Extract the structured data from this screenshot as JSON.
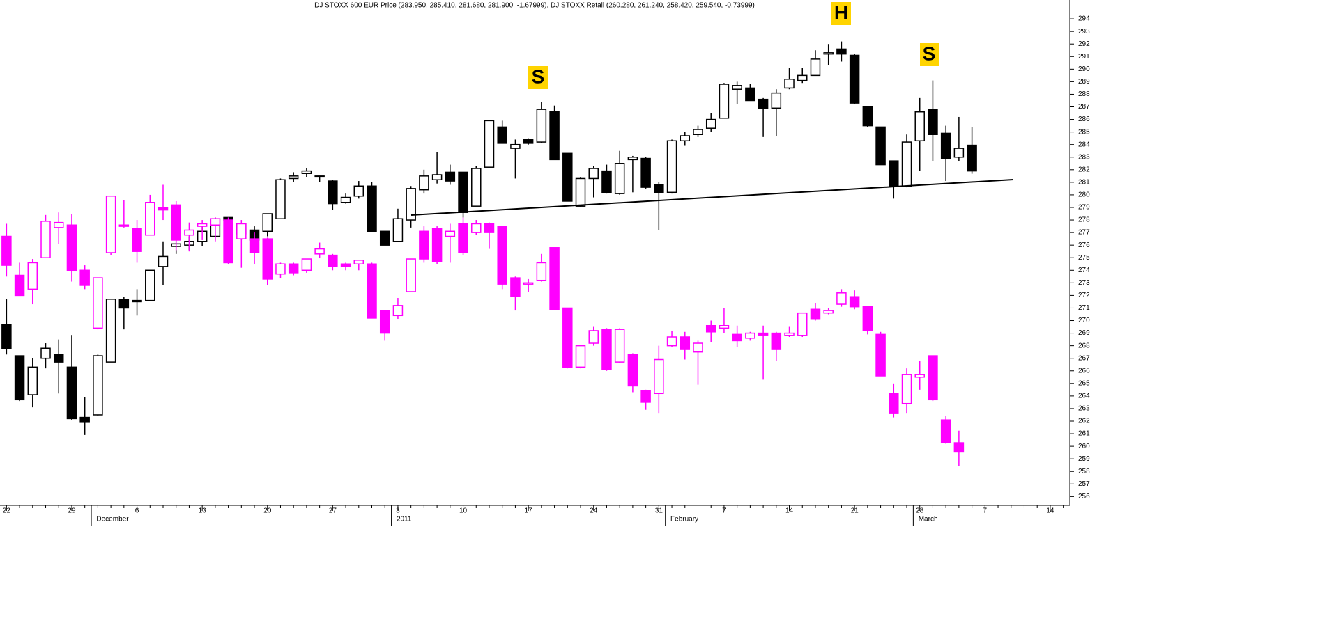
{
  "chart_data": {
    "type": "candlestick",
    "title": "DJ STOXX 600 EUR Price (283.950, 285.410, 281.680, 281.900, -1.67999), DJ STOXX Retail (260.280, 261.240, 258.420, 259.540, -0.73999)",
    "categories": [
      "22",
      null,
      null,
      null,
      null,
      "29",
      null,
      null,
      null,
      null,
      "6",
      null,
      null,
      null,
      null,
      "13",
      null,
      null,
      null,
      null,
      "20",
      null,
      null,
      null,
      null,
      "27",
      null,
      null,
      null,
      null,
      "3",
      null,
      null,
      null,
      null,
      "10",
      null,
      null,
      null,
      null,
      "17",
      null,
      null,
      null,
      null,
      "24",
      null,
      null,
      null,
      null,
      "31",
      null,
      null,
      null,
      null,
      "7",
      null,
      null,
      null,
      null,
      "14",
      null,
      null,
      null,
      null,
      "21",
      null,
      null,
      null,
      null,
      "28",
      null,
      null,
      null,
      null,
      "7",
      null,
      null,
      null,
      null,
      "14",
      null
    ],
    "month_labels": [
      null,
      null,
      null,
      null,
      null,
      null,
      null,
      "December",
      null,
      null,
      null,
      null,
      null,
      null,
      null,
      null,
      null,
      null,
      null,
      null,
      null,
      null,
      null,
      null,
      null,
      null,
      null,
      null,
      null,
      null,
      "2011",
      null,
      null,
      null,
      null,
      null,
      null,
      null,
      null,
      null,
      null,
      null,
      null,
      null,
      null,
      null,
      null,
      null,
      null,
      null,
      null,
      "February",
      null,
      null,
      null,
      null,
      null,
      null,
      null,
      null,
      null,
      null,
      null,
      null,
      null,
      null,
      null,
      null,
      null,
      null,
      "March",
      null,
      null,
      null,
      null,
      null,
      null,
      null,
      null,
      null,
      null,
      null
    ],
    "ylim": [
      255.3,
      295.5
    ],
    "yticks": [
      256,
      257,
      258,
      259,
      260,
      261,
      262,
      263,
      264,
      265,
      266,
      267,
      268,
      269,
      270,
      271,
      272,
      273,
      274,
      275,
      276,
      277,
      278,
      279,
      280,
      281,
      282,
      283,
      284,
      285,
      286,
      287,
      288,
      289,
      290,
      291,
      292,
      293,
      294
    ],
    "y_axis": "right",
    "grid": false,
    "annotations": [
      "S",
      "H",
      "S"
    ],
    "annotation_color": "#ffd400",
    "series": [
      {
        "color": "#000000",
        "open": [
          269.7,
          267.2,
          264.1,
          267.0,
          267.3,
          266.3,
          262.3,
          262.5,
          266.7,
          271.7,
          271.6,
          271.6,
          274.3,
          275.9,
          276.0,
          276.3,
          276.7,
          278.2,
          276.9,
          277.2,
          277.1,
          278.1,
          281.3,
          281.7,
          281.5,
          281.1,
          279.4,
          279.9,
          280.7,
          277.1,
          276.3,
          278.0,
          280.4,
          281.2,
          281.8,
          281.8,
          279.1,
          282.2,
          285.4,
          283.7,
          284.4,
          284.2,
          286.6,
          283.3,
          279.1,
          281.3,
          281.9,
          280.1,
          282.8,
          282.9,
          280.8,
          280.2,
          284.3,
          284.8,
          285.3,
          286.1,
          288.4,
          288.5,
          287.6,
          286.9,
          288.5,
          289.1,
          289.5,
          291.2,
          291.6,
          291.1,
          287.0,
          285.4,
          282.7,
          280.7,
          284.3,
          286.8,
          284.9,
          283.0,
          283.95,
          null,
          null,
          null,
          null,
          null,
          null,
          null
        ],
        "high": [
          271.7,
          267.2,
          267.0,
          268.2,
          268.5,
          268.8,
          263.9,
          267.3,
          271.7,
          271.9,
          272.5,
          274.0,
          276.3,
          276.8,
          276.7,
          277.7,
          278.2,
          278.2,
          277.7,
          277.5,
          278.5,
          281.3,
          281.8,
          282.1,
          281.5,
          281.2,
          280.1,
          281.1,
          281.0,
          277.1,
          278.9,
          280.7,
          282.0,
          283.4,
          282.4,
          281.8,
          282.3,
          285.9,
          285.9,
          284.4,
          284.5,
          287.4,
          287.1,
          283.3,
          281.4,
          282.3,
          282.4,
          283.5,
          283.1,
          283.0,
          281.0,
          284.4,
          285.0,
          285.5,
          286.5,
          288.9,
          289.0,
          288.8,
          287.7,
          288.4,
          290.1,
          290.1,
          291.5,
          292.0,
          292.2,
          291.2,
          287.0,
          285.4,
          282.7,
          284.8,
          287.7,
          289.1,
          285.5,
          286.2,
          285.41,
          null,
          null,
          null,
          null,
          null,
          null,
          null
        ],
        "low": [
          267.3,
          263.6,
          263.1,
          266.2,
          264.2,
          262.1,
          260.9,
          262.4,
          266.7,
          269.3,
          270.4,
          271.6,
          272.8,
          275.3,
          275.6,
          275.9,
          276.7,
          276.7,
          276.4,
          276.4,
          276.7,
          278.1,
          281.0,
          281.4,
          281.0,
          278.8,
          279.3,
          279.7,
          277.1,
          276.0,
          276.3,
          277.4,
          280.1,
          280.9,
          280.8,
          278.2,
          279.1,
          282.2,
          284.1,
          281.3,
          284.0,
          284.1,
          282.8,
          279.5,
          279.0,
          279.8,
          280.1,
          280.0,
          280.2,
          280.5,
          277.2,
          280.1,
          283.9,
          284.6,
          285.0,
          286.1,
          287.2,
          287.5,
          284.6,
          284.7,
          288.4,
          288.9,
          289.5,
          290.3,
          290.6,
          287.2,
          285.4,
          282.4,
          279.7,
          280.6,
          281.9,
          282.7,
          281.1,
          282.7,
          281.68,
          null,
          null,
          null,
          null,
          null,
          null,
          null
        ],
        "close": [
          267.8,
          263.7,
          266.3,
          267.8,
          266.7,
          262.2,
          261.9,
          267.2,
          271.7,
          271.0,
          271.5,
          274.0,
          275.1,
          276.1,
          276.3,
          277.1,
          278.1,
          278.0,
          277.7,
          276.4,
          278.5,
          281.2,
          281.5,
          281.9,
          281.5,
          279.3,
          279.8,
          280.7,
          277.1,
          276.0,
          278.1,
          280.5,
          281.5,
          281.6,
          281.1,
          278.6,
          282.1,
          285.9,
          284.1,
          284.0,
          284.1,
          286.8,
          282.8,
          279.5,
          281.3,
          282.1,
          280.2,
          282.5,
          283.0,
          280.6,
          280.2,
          284.3,
          284.7,
          285.2,
          286.0,
          288.8,
          288.7,
          287.5,
          286.9,
          288.1,
          289.2,
          289.5,
          290.8,
          291.3,
          291.2,
          287.3,
          285.5,
          282.4,
          280.7,
          284.2,
          286.6,
          284.8,
          282.9,
          283.7,
          281.9,
          null,
          null,
          null,
          null,
          null,
          null,
          null
        ]
      },
      {
        "color": "#ff00ff",
        "open": [
          276.7,
          273.6,
          272.5,
          275.0,
          277.4,
          277.6,
          274.0,
          269.4,
          275.4,
          277.6,
          277.3,
          276.8,
          279.0,
          279.2,
          276.8,
          277.5,
          277.6,
          278.0,
          276.5,
          276.5,
          276.5,
          273.7,
          274.5,
          274.0,
          275.3,
          275.2,
          274.5,
          274.5,
          274.5,
          270.8,
          270.4,
          272.3,
          277.1,
          277.3,
          276.7,
          277.7,
          277.0,
          277.7,
          277.5,
          273.4,
          272.9,
          273.2,
          275.8,
          271.0,
          266.3,
          268.2,
          269.3,
          266.7,
          267.3,
          264.4,
          264.2,
          268.0,
          268.7,
          267.5,
          269.6,
          269.4,
          268.9,
          268.6,
          269.0,
          269.0,
          268.8,
          268.8,
          270.9,
          270.6,
          271.3,
          271.9,
          271.1,
          268.9,
          264.2,
          263.4,
          265.5,
          267.2,
          262.1,
          260.28,
          null,
          null,
          null,
          null,
          null,
          null,
          null,
          null
        ],
        "high": [
          277.7,
          274.6,
          274.9,
          278.4,
          278.6,
          278.5,
          274.4,
          273.4,
          279.9,
          279.6,
          278.0,
          280.0,
          280.8,
          279.5,
          277.8,
          278.0,
          278.2,
          278.2,
          278.0,
          277.0,
          276.6,
          274.6,
          274.6,
          274.9,
          276.2,
          275.3,
          274.6,
          274.8,
          274.6,
          270.8,
          271.8,
          274.9,
          277.5,
          277.5,
          277.7,
          278.2,
          278.0,
          277.8,
          277.5,
          273.5,
          273.3,
          275.3,
          275.8,
          271.0,
          268.0,
          269.5,
          269.4,
          269.4,
          267.4,
          264.5,
          268.0,
          269.2,
          269.1,
          268.4,
          270.0,
          271.0,
          269.6,
          269.1,
          269.6,
          269.1,
          269.5,
          270.6,
          271.4,
          271.0,
          272.5,
          272.4,
          271.1,
          269.1,
          265.0,
          266.2,
          266.8,
          267.2,
          262.4,
          261.24,
          null,
          null,
          null,
          null,
          null,
          null,
          null,
          null
        ],
        "low": [
          273.5,
          272.0,
          271.3,
          275.0,
          276.1,
          273.1,
          272.5,
          269.3,
          275.2,
          277.4,
          274.6,
          276.8,
          278.0,
          275.6,
          275.5,
          276.4,
          276.3,
          274.5,
          274.2,
          274.5,
          272.8,
          273.4,
          273.6,
          273.8,
          275.0,
          274.0,
          274.0,
          274.0,
          270.2,
          268.4,
          270.1,
          272.3,
          274.6,
          274.5,
          274.6,
          275.2,
          276.8,
          275.7,
          272.5,
          270.8,
          272.3,
          273.1,
          270.9,
          266.2,
          266.2,
          268.0,
          266.0,
          266.6,
          264.3,
          262.9,
          262.6,
          267.9,
          266.9,
          264.9,
          268.3,
          269.0,
          267.9,
          268.4,
          265.3,
          266.8,
          268.7,
          268.7,
          270.0,
          270.5,
          271.1,
          270.9,
          268.9,
          265.6,
          262.3,
          262.6,
          264.5,
          263.6,
          260.2,
          258.42,
          null,
          null,
          null,
          null,
          null,
          null,
          null,
          null
        ],
        "close": [
          274.4,
          272.0,
          274.6,
          277.9,
          277.8,
          274.0,
          272.8,
          273.4,
          279.9,
          277.5,
          275.5,
          279.4,
          278.8,
          276.4,
          277.2,
          277.7,
          278.1,
          274.6,
          277.7,
          275.4,
          273.3,
          274.5,
          273.8,
          274.9,
          275.7,
          274.3,
          274.3,
          274.8,
          270.2,
          269.0,
          271.2,
          274.9,
          274.9,
          274.7,
          277.1,
          275.4,
          277.7,
          277.0,
          272.9,
          271.9,
          273.0,
          274.6,
          270.9,
          266.3,
          268.0,
          269.2,
          266.1,
          269.3,
          264.8,
          263.5,
          266.9,
          268.7,
          267.7,
          268.2,
          269.1,
          269.6,
          268.4,
          269.0,
          268.8,
          267.7,
          269.0,
          270.6,
          270.1,
          270.8,
          272.2,
          271.1,
          269.2,
          265.6,
          262.6,
          265.7,
          265.7,
          263.7,
          260.3,
          259.54,
          null,
          null,
          null,
          null,
          null,
          null,
          null,
          null
        ]
      }
    ]
  }
}
